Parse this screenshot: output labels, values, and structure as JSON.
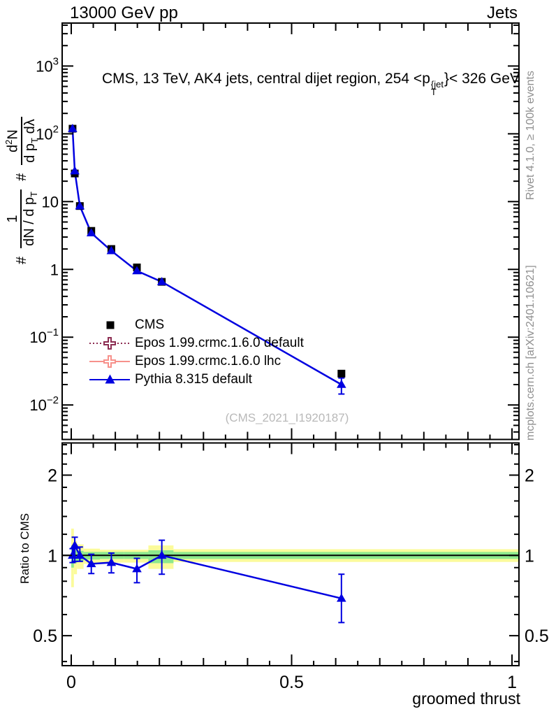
{
  "header": {
    "energy": "13000 GeV pp",
    "analysis": "Jets"
  },
  "plot_title": {
    "prefix": "CMS, 13 TeV, AK4 jets, central dijet region, 254 <p",
    "sup": "{jet",
    "sub": "T",
    "suffix": "}< 326 GeV"
  },
  "y_axis_label": {
    "hash1": "#",
    "frac1_num": "1",
    "frac1_den_main": "dN / d p",
    "frac1_den_sub": "T",
    "hash2": "#",
    "frac2_num_d": "d",
    "frac2_num_exp": "2",
    "frac2_num_N": "N",
    "frac2_den_a": "d p",
    "frac2_den_sub": "T",
    "frac2_den_b": " dλ"
  },
  "legend": {
    "items": [
      {
        "label": "CMS",
        "marker": "filled-square",
        "color": "#000000",
        "line_style": "none"
      },
      {
        "label": "Epos 1.99.crmc.1.6.0 default",
        "marker": "open-cross",
        "color": "#8c2d52",
        "line_style": "dotted"
      },
      {
        "label": "Epos 1.99.crmc.1.6.0 lhc",
        "marker": "open-cross",
        "color": "#f7918b",
        "line_style": "solid"
      },
      {
        "label": "Pythia 8.315 default",
        "marker": "filled-triangle",
        "color": "#0000e0",
        "line_style": "solid"
      }
    ]
  },
  "watermark": "(CMS_2021_I1920187)",
  "side_notes": {
    "top": "Rivet 4.1.0, ≥ 100k events",
    "bottom": "mcplots.cern.ch [arXiv:2401.10621]"
  },
  "ratio_panel": {
    "ylabel": "Ratio to CMS"
  },
  "x_axis_label": "groomed thrust",
  "colors": {
    "pythia_blue": "#0000e0",
    "epos_default": "#8c2d52",
    "epos_lhc": "#f7918b",
    "band_yellow": "#fbfb9b",
    "band_green": "#8de88d",
    "gray_text": "#8f8f8f",
    "watermark_gray": "#b9b9b9"
  },
  "chart_data": [
    {
      "type": "line",
      "panel": "main",
      "title": "CMS, 13 TeV, AK4 jets, central dijet region, 254 < pT^{jet} < 326 GeV",
      "xlabel": "groomed thrust",
      "ylabel": "# 1/(dN/dpT) d²N/(dpT dλ)",
      "yscale": "log",
      "grid": false,
      "legend_position": "left-middle",
      "xlim": [
        -0.0206,
        1.0158
      ],
      "ylim": [
        0.0031,
        4300
      ],
      "x": [
        0.003,
        0.008,
        0.0195,
        0.0455,
        0.091,
        0.149,
        0.2055,
        0.613
      ],
      "series": [
        {
          "name": "CMS",
          "marker": "filled-square",
          "color": "#000000",
          "values": [
            119,
            26,
            8.6,
            3.7,
            2.0,
            1.07,
            0.655,
            0.029
          ]
        },
        {
          "name": "Pythia 8.315 default",
          "marker": "filled-triangle",
          "color": "#0000e0",
          "values": [
            119,
            28.3,
            8.6,
            3.44,
            1.88,
            0.95,
            0.655,
            0.02
          ],
          "last_point_err": [
            0.0145,
            0.025
          ]
        }
      ],
      "legend_only_series": [
        "Epos 1.99.crmc.1.6.0 default",
        "Epos 1.99.crmc.1.6.0 lhc"
      ],
      "x_ticks": [
        {
          "v": 0,
          "label": "0"
        },
        {
          "v": 0.5,
          "label": "0.5"
        },
        {
          "v": 1,
          "label": "1"
        }
      ],
      "y_ticks": [
        {
          "v": 1000,
          "base": "10",
          "exp": "3"
        },
        {
          "v": 100,
          "base": "10",
          "exp": "2"
        },
        {
          "v": 10,
          "base": "10",
          "exp": ""
        },
        {
          "v": 1,
          "base": "1",
          "exp": ""
        },
        {
          "v": 0.1,
          "base": "10",
          "exp": "−1"
        },
        {
          "v": 0.01,
          "base": "10",
          "exp": "−2"
        }
      ]
    },
    {
      "type": "line",
      "panel": "ratio",
      "ylabel": "Ratio to CMS",
      "yscale": "log",
      "ylim": [
        0.386,
        2.64
      ],
      "ref_line": 1,
      "x": [
        0.003,
        0.008,
        0.0195,
        0.0455,
        0.091,
        0.149,
        0.2055,
        0.613
      ],
      "ratio": [
        1.0,
        1.09,
        1.0,
        0.93,
        0.94,
        0.89,
        1.0,
        0.69
      ],
      "err_bounds": [
        [
          0.94,
          1.06
        ],
        [
          0.95,
          1.17
        ],
        [
          0.95,
          1.075
        ],
        [
          0.855,
          1.01
        ],
        [
          0.86,
          1.02
        ],
        [
          0.79,
          0.975
        ],
        [
          0.85,
          1.14
        ],
        [
          0.56,
          0.85
        ]
      ],
      "bands": [
        {
          "x0": 0.0,
          "x1": 0.006,
          "y_lo": 0.76,
          "y_hi": 1.26,
          "g_lo": 0.9,
          "g_hi": 1.09
        },
        {
          "x0": 0.006,
          "x1": 0.013,
          "y_lo": 0.85,
          "y_hi": 1.13,
          "g_lo": 0.935,
          "g_hi": 1.045
        },
        {
          "x0": 0.013,
          "x1": 0.028,
          "y_lo": 0.89,
          "y_hi": 1.1,
          "g_lo": 0.95,
          "g_hi": 1.04
        },
        {
          "x0": 0.028,
          "x1": 0.065,
          "y_lo": 0.93,
          "y_hi": 1.06,
          "g_lo": 0.965,
          "g_hi": 1.03
        },
        {
          "x0": 0.065,
          "x1": 0.12,
          "y_lo": 0.94,
          "y_hi": 1.05,
          "g_lo": 0.97,
          "g_hi": 1.03
        },
        {
          "x0": 0.12,
          "x1": 0.175,
          "y_lo": 0.94,
          "y_hi": 1.05,
          "g_lo": 0.97,
          "g_hi": 1.03
        },
        {
          "x0": 0.175,
          "x1": 0.232,
          "y_lo": 0.89,
          "y_hi": 1.09,
          "g_lo": 0.935,
          "g_hi": 1.045
        },
        {
          "x0": 0.232,
          "x1": 1.0158,
          "y_lo": 0.945,
          "y_hi": 1.055,
          "g_lo": 0.97,
          "g_hi": 1.03
        }
      ],
      "y_ticks": {
        "major": [
          {
            "v": 2,
            "label": "2"
          },
          {
            "v": 1,
            "label": "1"
          },
          {
            "v": 0.5,
            "label": "0.5"
          }
        ],
        "minor": [
          0.4,
          0.6,
          0.7,
          0.8,
          0.9,
          1.2,
          1.4,
          1.6,
          1.8,
          2.2,
          2.4,
          2.6
        ]
      }
    }
  ]
}
